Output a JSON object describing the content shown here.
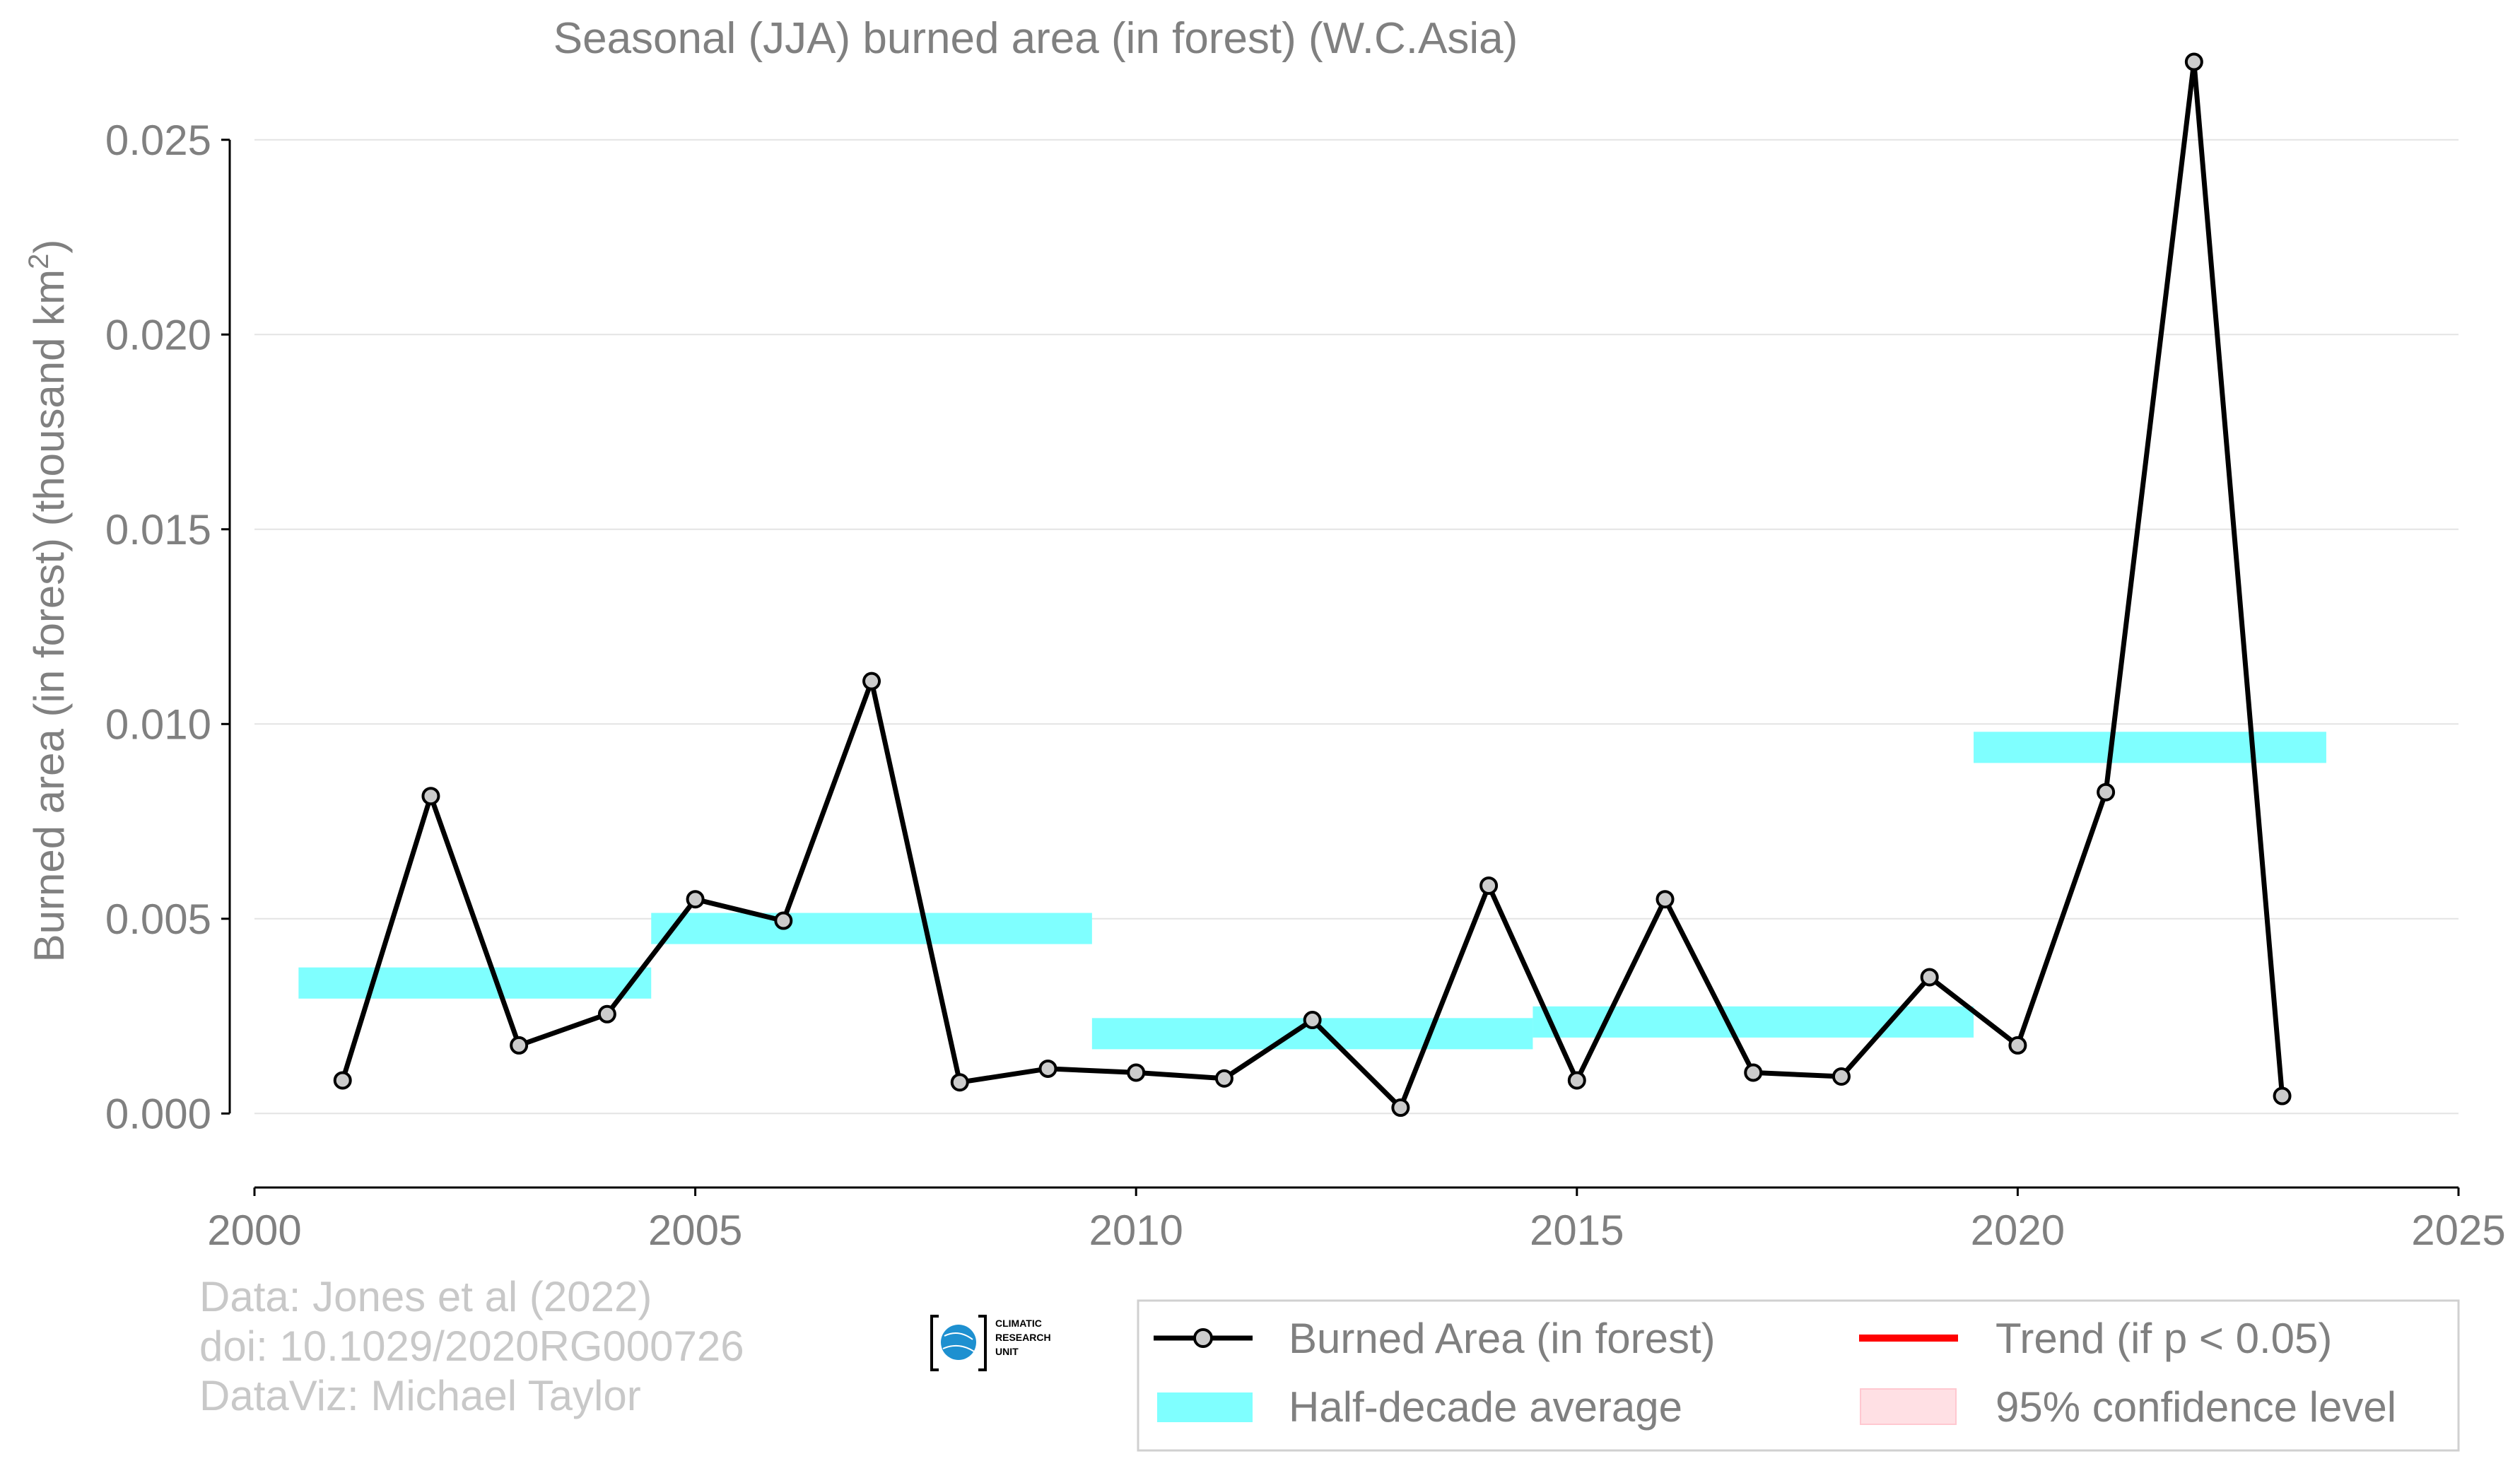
{
  "chart_data": {
    "type": "line",
    "title": "Seasonal (JJA) burned area (in forest) (W.C.Asia)",
    "ylabel": "Burned area (in forest) (thousand km",
    "ylabel_sup": "2",
    "ylabel_close": ")",
    "xlim": [
      2000,
      2025
    ],
    "ylim": [
      -0.0019,
      0.0275
    ],
    "x_ticks": [
      2000,
      2005,
      2010,
      2015,
      2020,
      2025
    ],
    "x_tick_labels": [
      "2000",
      "2005",
      "2010",
      "2015",
      "2020",
      "2025"
    ],
    "y_ticks": [
      0.0,
      0.005,
      0.01,
      0.015,
      0.02,
      0.025
    ],
    "y_tick_labels": [
      "0.000",
      "0.005",
      "0.010",
      "0.015",
      "0.020",
      "0.025"
    ],
    "grid": "horizontal",
    "series": [
      {
        "name": "Burned Area (in forest)",
        "color": "#000000",
        "marker_fill": "#cccccc",
        "x": [
          2001,
          2002,
          2003,
          2004,
          2005,
          2006,
          2007,
          2008,
          2009,
          2010,
          2011,
          2012,
          2013,
          2014,
          2015,
          2016,
          2017,
          2018,
          2019,
          2020,
          2021,
          2022,
          2023
        ],
        "y": [
          0.00085,
          0.00815,
          0.00175,
          0.00255,
          0.0055,
          0.00495,
          0.0111,
          0.0008,
          0.00115,
          0.00105,
          0.0009,
          0.0024,
          0.00015,
          0.00585,
          0.00085,
          0.0055,
          0.00105,
          0.00095,
          0.0035,
          0.00175,
          0.00825,
          0.027,
          0.00045
        ]
      }
    ],
    "half_decade_average": {
      "name": "Half-decade average",
      "color": "#7fffff",
      "segments": [
        {
          "x0": 2000.5,
          "x1": 2004.5,
          "y": 0.00335
        },
        {
          "x0": 2004.5,
          "x1": 2009.5,
          "y": 0.00475
        },
        {
          "x0": 2009.5,
          "x1": 2014.5,
          "y": 0.00205
        },
        {
          "x0": 2014.5,
          "x1": 2019.5,
          "y": 0.00235
        },
        {
          "x0": 2019.5,
          "x1": 2023.5,
          "y": 0.0094
        }
      ]
    },
    "legend": {
      "placement": "bottom-right",
      "entries": [
        {
          "label": "Burned Area (in forest)",
          "style": "line-marker",
          "color": "#000000"
        },
        {
          "label": "Trend (if p < 0.05)",
          "style": "line",
          "color": "#ff0000"
        },
        {
          "label": "Half-decade average",
          "style": "band",
          "color": "#7fffff"
        },
        {
          "label": "95% confidence level",
          "style": "band",
          "color": "#ffe0e4"
        }
      ]
    },
    "credits": [
      "Data: Jones et al (2022)",
      "doi: 10.1029/2020RG000726",
      "DataViz: Michael Taylor"
    ],
    "logo_text": [
      "CLIMATIC",
      "RESEARCH",
      "UNIT"
    ]
  }
}
